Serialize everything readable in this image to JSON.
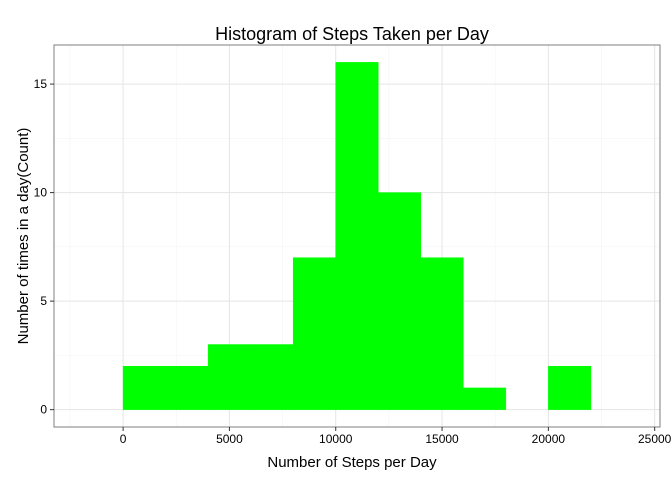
{
  "chart_data": {
    "type": "bar",
    "title": "Histogram of Steps Taken per Day",
    "xlabel": "Number of Steps per Day",
    "ylabel": "Number of times in a day(Count)",
    "bin_width": 2000,
    "bins": [
      {
        "x0": 0,
        "x1": 2000,
        "count": 2
      },
      {
        "x0": 2000,
        "x1": 4000,
        "count": 2
      },
      {
        "x0": 4000,
        "x1": 6000,
        "count": 3
      },
      {
        "x0": 6000,
        "x1": 8000,
        "count": 3
      },
      {
        "x0": 8000,
        "x1": 10000,
        "count": 7
      },
      {
        "x0": 10000,
        "x1": 12000,
        "count": 16
      },
      {
        "x0": 12000,
        "x1": 14000,
        "count": 10
      },
      {
        "x0": 14000,
        "x1": 16000,
        "count": 7
      },
      {
        "x0": 16000,
        "x1": 18000,
        "count": 1
      },
      {
        "x0": 18000,
        "x1": 20000,
        "count": 0
      },
      {
        "x0": 20000,
        "x1": 22000,
        "count": 2
      }
    ],
    "xlim": [
      -3250,
      25250
    ],
    "ylim": [
      -0.8,
      16.8
    ],
    "x_ticks": [
      0,
      5000,
      10000,
      15000,
      20000,
      25000
    ],
    "x_tick_labels": [
      "0",
      "5000",
      "10000",
      "15000",
      "20000",
      "25000"
    ],
    "y_ticks": [
      0,
      5,
      10,
      15
    ],
    "y_tick_labels": [
      "0",
      "5",
      "10",
      "15"
    ],
    "grid": true,
    "legend": "none",
    "colors": {
      "bar_fill": "#00ff00",
      "panel_border": "#7f7f7f",
      "grid_major": "#e5e5e5",
      "grid_minor": "#f4f4f4",
      "background": "#ffffff"
    }
  }
}
